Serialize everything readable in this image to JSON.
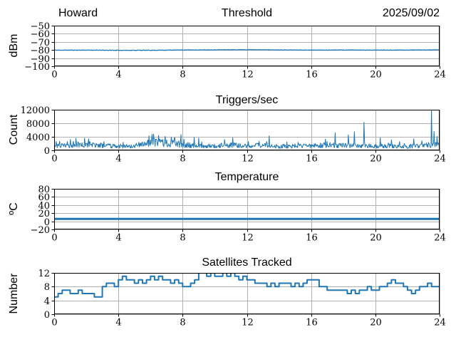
{
  "style": {
    "line_color": "#1f77b4",
    "grid_color": "#b0b0b0",
    "axis_color": "#000000",
    "background": "#ffffff"
  },
  "chart_data": [
    {
      "type": "line",
      "title": "Threshold",
      "title_left": "Howard",
      "title_right": "2025/09/02",
      "ylabel": "dBm",
      "ylim": [
        -100,
        -50
      ],
      "yticks": [
        -50,
        -60,
        -70,
        -80,
        -90,
        -100
      ],
      "ytick_labels": [
        "−50",
        "−60",
        "−70",
        "−80",
        "−90",
        "−100"
      ],
      "xlim": [
        0,
        24
      ],
      "xticks": [
        0,
        4,
        8,
        12,
        16,
        20,
        24
      ],
      "grid": true,
      "legend": "none",
      "series": [
        {
          "name": "noise-floor-dbm",
          "style": "noisy_line",
          "anchor_step_h": 2,
          "anchors": [
            -80.2,
            -80.15,
            -80.35,
            -80.3,
            -80.0,
            -79.8,
            -79.6,
            -79.9,
            -80.1,
            -80.0,
            -80.1,
            -80.05,
            -79.9
          ],
          "texture": {
            "noise_amplitude": 0.3,
            "seed": 11
          }
        }
      ]
    },
    {
      "type": "line",
      "title": "Triggers/sec",
      "ylabel": "Count",
      "ylim": [
        0,
        12000
      ],
      "yticks": [
        0,
        4000,
        8000,
        12000
      ],
      "ytick_labels": [
        "0",
        "4000",
        "8000",
        "12000"
      ],
      "xlim": [
        0,
        24
      ],
      "xticks": [
        0,
        4,
        8,
        12,
        16,
        20,
        24
      ],
      "grid": true,
      "legend": "none",
      "series": [
        {
          "name": "trigger-rate",
          "style": "spiky",
          "baseline_step_h": 1,
          "baseline": [
            1500,
            1600,
            2200,
            1500,
            1400,
            1500,
            2600,
            2400,
            1900,
            1400,
            1500,
            1700,
            1500,
            1600,
            1300,
            1500,
            1400,
            1800,
            1600,
            1700,
            1400,
            1500,
            1300,
            1600,
            1800
          ],
          "spikes": [
            [
              0.35,
              2700
            ],
            [
              1.0,
              3200
            ],
            [
              1.9,
              3600
            ],
            [
              2.15,
              3400
            ],
            [
              3.1,
              2600
            ],
            [
              4.3,
              2400
            ],
            [
              5.9,
              4300
            ],
            [
              6.2,
              4800
            ],
            [
              6.5,
              4400
            ],
            [
              6.9,
              4100
            ],
            [
              7.3,
              3900
            ],
            [
              7.5,
              3800
            ],
            [
              7.9,
              4700
            ],
            [
              8.7,
              3800
            ],
            [
              9.0,
              3600
            ],
            [
              10.6,
              3200
            ],
            [
              11.1,
              3700
            ],
            [
              12.1,
              2600
            ],
            [
              13.4,
              4300
            ],
            [
              14.5,
              2500
            ],
            [
              15.2,
              2400
            ],
            [
              16.9,
              3300
            ],
            [
              17.5,
              5200
            ],
            [
              18.3,
              4600
            ],
            [
              18.7,
              5500
            ],
            [
              19.3,
              8300
            ],
            [
              20.3,
              3700
            ],
            [
              21.0,
              3100
            ],
            [
              21.5,
              2600
            ],
            [
              22.4,
              3400
            ],
            [
              22.9,
              2800
            ],
            [
              23.5,
              12400
            ],
            [
              23.65,
              5600
            ],
            [
              23.85,
              4100
            ]
          ],
          "texture": {
            "noise_low": 0.42,
            "noise_high": 1.35,
            "seed": 23
          }
        }
      ]
    },
    {
      "type": "line",
      "title": "Temperature",
      "ylabel": "ºC",
      "ylim": [
        -20,
        80
      ],
      "yticks": [
        80,
        60,
        40,
        20,
        0,
        -20
      ],
      "ytick_labels": [
        "80",
        "60",
        "40",
        "20",
        "0",
        "−20"
      ],
      "xlim": [
        0,
        24
      ],
      "xticks": [
        0,
        4,
        8,
        12,
        16,
        20,
        24
      ],
      "grid": true,
      "legend": "none",
      "series": [
        {
          "name": "temperature-c",
          "style": "flat",
          "value": 6
        }
      ]
    },
    {
      "type": "line",
      "title": "Satellites Tracked",
      "ylabel": "Number",
      "ylim": [
        0,
        12
      ],
      "yticks": [
        0,
        4,
        8,
        12
      ],
      "ytick_labels": [
        "0",
        "4",
        "8",
        "12"
      ],
      "xlim": [
        0,
        24
      ],
      "xticks": [
        0,
        4,
        8,
        12,
        16,
        20,
        24
      ],
      "grid": true,
      "legend": "none",
      "series": [
        {
          "name": "satellites-tracked",
          "style": "step",
          "x_step_h": 0.25,
          "values": [
            5,
            6,
            7,
            7,
            6,
            6,
            7,
            6,
            6,
            6,
            5,
            5,
            8,
            9,
            9,
            8,
            10,
            11,
            10,
            10,
            9,
            10,
            9,
            10,
            11,
            10,
            11,
            10,
            10,
            9,
            10,
            9,
            8,
            8,
            9,
            10,
            12,
            12,
            11,
            12,
            11,
            11,
            12,
            11,
            12,
            11,
            10,
            11,
            10,
            10,
            9,
            9,
            9,
            8,
            9,
            8,
            9,
            9,
            9,
            8,
            9,
            8,
            9,
            10,
            10,
            10,
            8,
            8,
            7,
            7,
            7,
            7,
            7,
            6,
            7,
            6,
            7,
            7,
            8,
            7,
            7,
            8,
            8,
            9,
            10,
            9,
            9,
            8,
            7,
            6,
            7,
            8,
            8,
            9,
            8,
            8,
            9
          ]
        }
      ]
    }
  ]
}
